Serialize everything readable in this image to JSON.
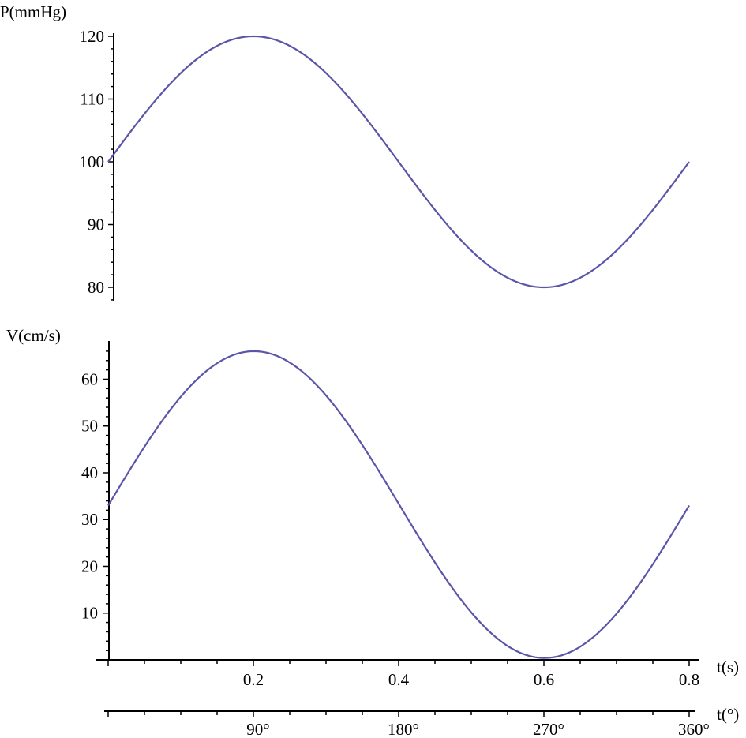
{
  "chart_data": [
    {
      "type": "line",
      "ylabel": "P(mmHg)",
      "ylim": [
        80,
        120
      ],
      "yticks": [
        "120",
        "110",
        "100",
        "90",
        "80"
      ],
      "color": "#5a55a8",
      "grid": false,
      "x": [
        0.0,
        0.05,
        0.1,
        0.15,
        0.2,
        0.25,
        0.3,
        0.35,
        0.4,
        0.45,
        0.5,
        0.55,
        0.6,
        0.65,
        0.7,
        0.75,
        0.8
      ],
      "y": [
        100.0,
        107.7,
        114.1,
        118.5,
        120.0,
        118.5,
        114.1,
        107.7,
        100.0,
        92.3,
        85.9,
        81.5,
        80.0,
        81.5,
        85.9,
        92.3,
        100.0
      ]
    },
    {
      "type": "line",
      "ylabel": "V(cm/s)",
      "xlabel": "t(s)",
      "xlabel2": "t(°)",
      "ylim": [
        0,
        67
      ],
      "yticks": [
        "60",
        "50",
        "40",
        "30",
        "20",
        "10"
      ],
      "xlim": [
        0,
        0.8
      ],
      "xticks": [
        "0.2",
        "0.4",
        "0.6",
        "0.8"
      ],
      "xticks2": [
        "90°",
        "180°",
        "270°",
        "360°"
      ],
      "color": "#5a55a8",
      "grid": false,
      "x": [
        0.0,
        0.05,
        0.1,
        0.15,
        0.2,
        0.25,
        0.3,
        0.35,
        0.4,
        0.45,
        0.5,
        0.55,
        0.6,
        0.65,
        0.7,
        0.75,
        0.8
      ],
      "y": [
        33.0,
        45.6,
        56.3,
        63.2,
        65.6,
        63.2,
        56.3,
        45.6,
        33.0,
        20.4,
        9.6,
        2.5,
        0.0,
        2.5,
        9.6,
        20.4,
        33.0
      ]
    }
  ]
}
